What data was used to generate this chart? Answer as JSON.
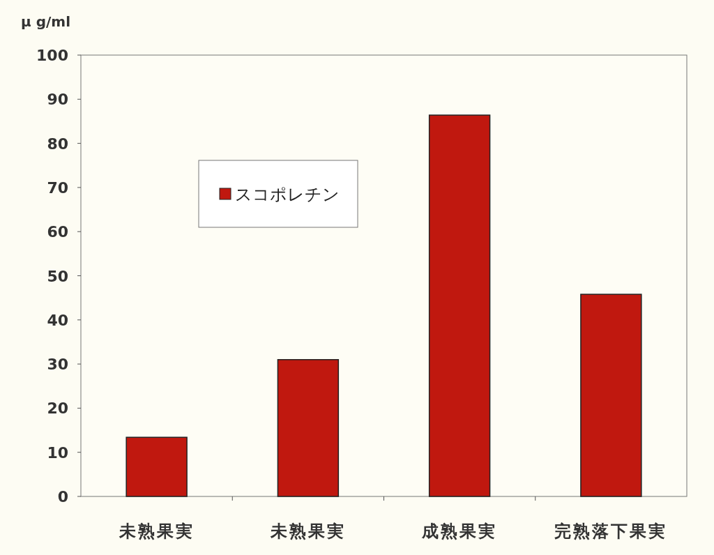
{
  "chart_data": {
    "type": "bar",
    "ylabel": "μ g/ml",
    "categories": [
      "未熟果実",
      "未熟果実",
      "成熟果実",
      "完熟落下果実"
    ],
    "series": [
      {
        "name": "スコポレチン",
        "color": "#c0180f",
        "values": [
          13.4,
          31.0,
          86.4,
          45.8
        ]
      }
    ],
    "ylim": [
      0,
      100
    ],
    "yticks": [
      0,
      10,
      20,
      30,
      40,
      50,
      60,
      70,
      80,
      90,
      100
    ],
    "legend": "top left"
  }
}
